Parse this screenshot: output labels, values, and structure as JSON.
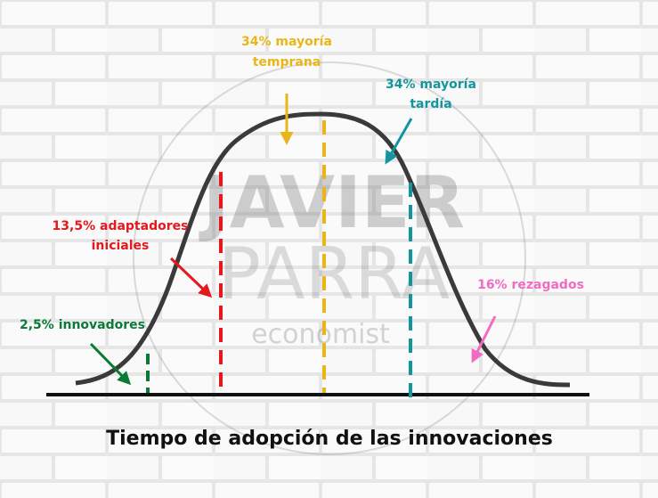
{
  "title": "Tiempo de adopción de las innovaciones",
  "watermark": {
    "lines": [
      "JAVIER",
      "PARRA",
      "economist"
    ]
  },
  "segments": [
    {
      "label_lines": [
        "2,5% innovadores"
      ]
    },
    {
      "label_lines": [
        "13,5% adaptadores",
        "iniciales"
      ]
    },
    {
      "label_lines": [
        "34% mayoría",
        "temprana"
      ]
    },
    {
      "label_lines": [
        "34% mayoría",
        "tardía"
      ]
    },
    {
      "label_lines": [
        "16% rezagados"
      ]
    }
  ]
}
